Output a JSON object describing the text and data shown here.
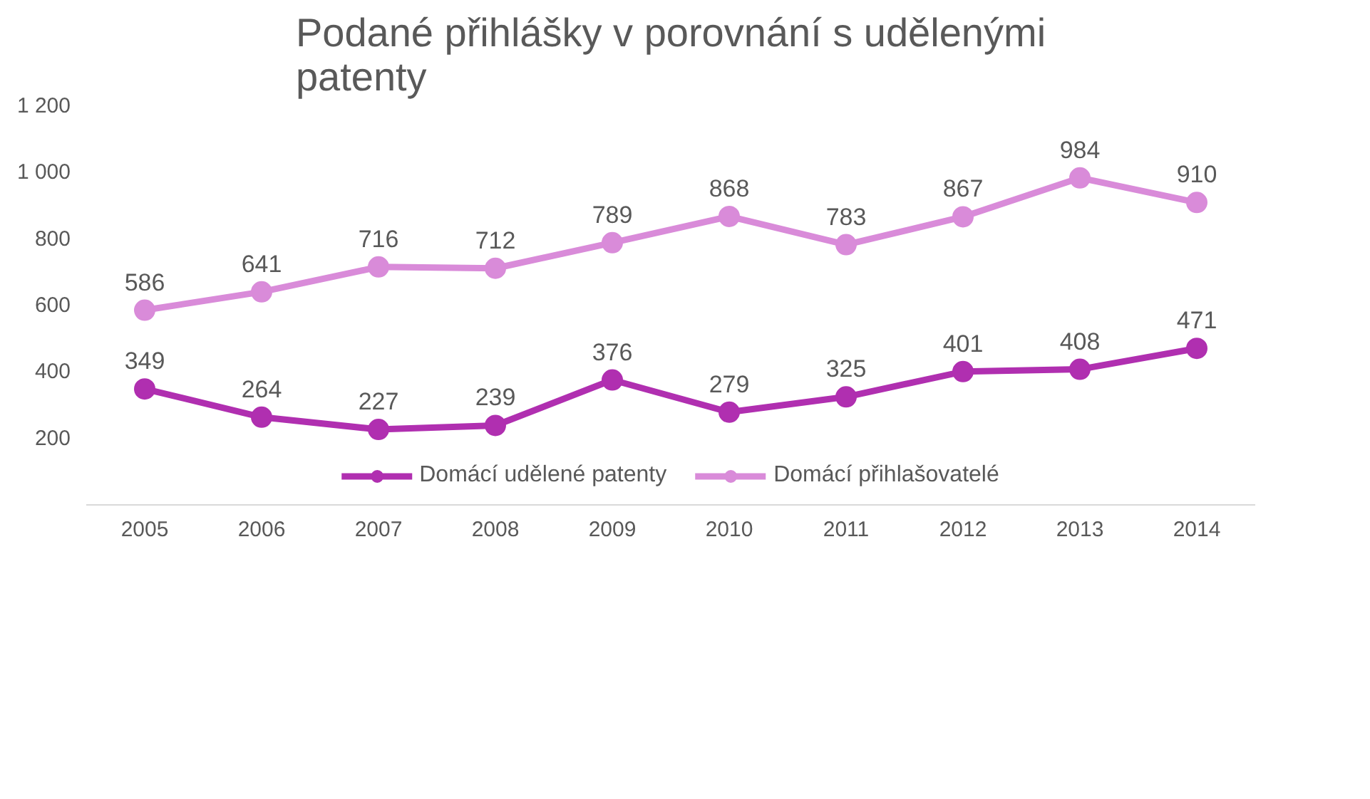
{
  "chart_data": {
    "type": "line",
    "title": "Podané přihlášky v porovnání s udělenými patenty",
    "categories": [
      "2005",
      "2006",
      "2007",
      "2008",
      "2009",
      "2010",
      "2011",
      "2012",
      "2013",
      "2014"
    ],
    "series": [
      {
        "name": "Domácí udělené patenty",
        "color": "#b02fb0",
        "values": [
          349,
          264,
          227,
          239,
          376,
          279,
          325,
          401,
          408,
          471
        ]
      },
      {
        "name": "Domácí přihlašovatelé",
        "color": "#d98bd9",
        "values": [
          586,
          641,
          716,
          712,
          789,
          868,
          783,
          867,
          984,
          910
        ]
      }
    ],
    "ylim": [
      0,
      1200
    ],
    "yticks": [
      {
        "value": 200,
        "label": "200"
      },
      {
        "value": 400,
        "label": "400"
      },
      {
        "value": 600,
        "label": "600"
      },
      {
        "value": 800,
        "label": "800"
      },
      {
        "value": 1000,
        "label": "1 000"
      },
      {
        "value": 1200,
        "label": "1 200"
      }
    ],
    "grid": false,
    "legend": "bottom",
    "marker": "circle",
    "line_style": "solid",
    "data_labels": true
  }
}
